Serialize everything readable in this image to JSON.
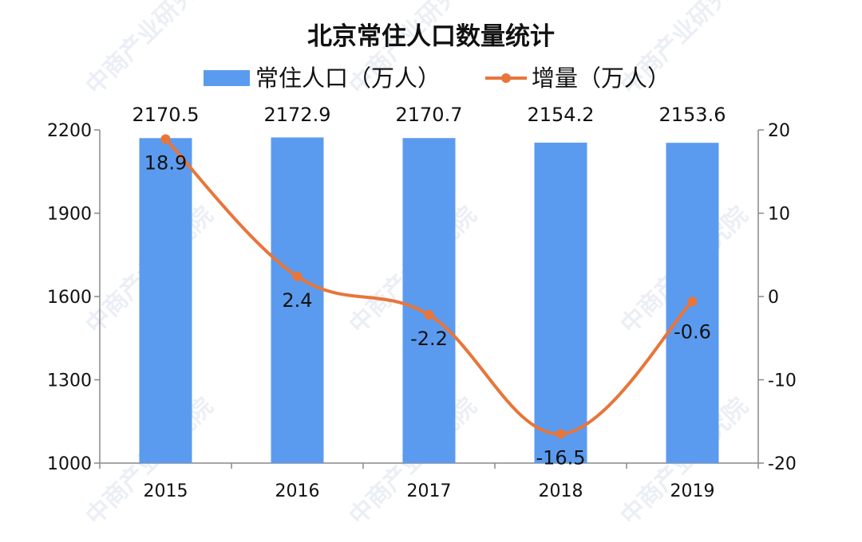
{
  "chart_data": {
    "type": "bar",
    "title": "北京常住人口数量统计",
    "categories": [
      "2015",
      "2016",
      "2017",
      "2018",
      "2019"
    ],
    "series": [
      {
        "name": "常住人口（万人）",
        "type": "bar",
        "axis": "left",
        "color": "#5b9bef",
        "values": [
          2170.5,
          2172.9,
          2170.7,
          2154.2,
          2153.6
        ],
        "labels": [
          "2170.5",
          "2172.9",
          "2170.7",
          "2154.2",
          "2153.6"
        ]
      },
      {
        "name": "增量（万人）",
        "type": "line",
        "axis": "right",
        "color": "#e8753a",
        "values": [
          18.9,
          2.4,
          -2.2,
          -16.5,
          -0.6
        ],
        "labels": [
          "18.9",
          "2.4",
          "-2.2",
          "-16.5",
          "-0.6"
        ]
      }
    ],
    "y_left": {
      "min": 1000,
      "max": 2200,
      "ticks": [
        "1000",
        "1300",
        "1600",
        "1900",
        "2200"
      ]
    },
    "y_right": {
      "min": -20,
      "max": 20,
      "ticks": [
        "-20",
        "-10",
        "0",
        "10",
        "20"
      ]
    },
    "legend_position": "top-center",
    "grid": false,
    "watermark": "中商产业研究院"
  }
}
